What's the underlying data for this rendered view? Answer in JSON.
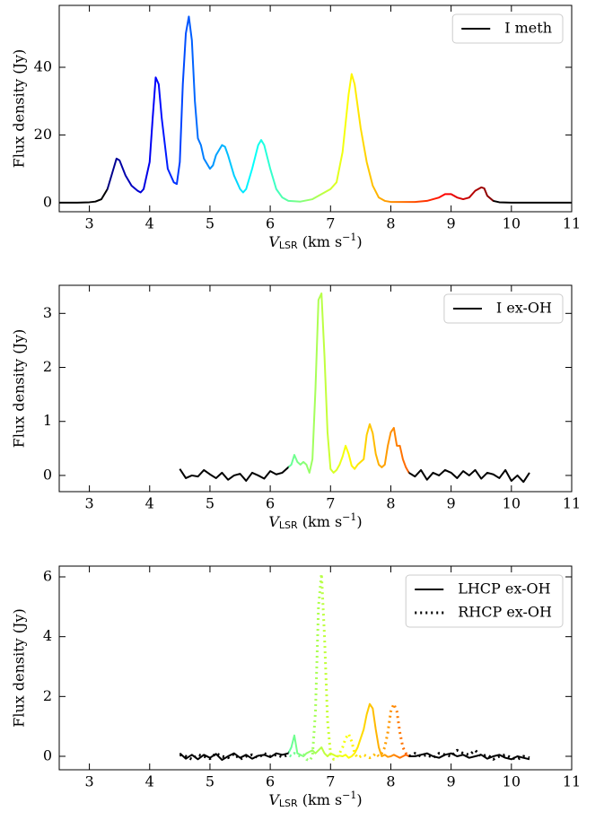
{
  "chart_data": [
    {
      "type": "line",
      "ylabel": "Flux density (Jy)",
      "xlabel_parts": [
        "V",
        "LSR",
        " (km s",
        "−1",
        ")"
      ],
      "xlim": [
        2.5,
        11
      ],
      "xticks": [
        3,
        4,
        5,
        6,
        7,
        8,
        9,
        10,
        11
      ],
      "ylim": [
        -2.7,
        58.3
      ],
      "yticks": [
        0,
        20,
        40
      ],
      "colormap": "jet",
      "colormap_xlim": [
        3.3,
        9.7
      ],
      "legend": "upper right",
      "series": [
        {
          "name": "I meth",
          "color": "#000000",
          "dash": "solid",
          "colored_x": [
            3.3,
            9.7
          ],
          "x": [
            2.5,
            2.8,
            3.0,
            3.1,
            3.2,
            3.3,
            3.4,
            3.45,
            3.5,
            3.6,
            3.7,
            3.8,
            3.85,
            3.9,
            4.0,
            4.05,
            4.1,
            4.15,
            4.2,
            4.3,
            4.4,
            4.45,
            4.5,
            4.55,
            4.6,
            4.65,
            4.7,
            4.75,
            4.8,
            4.85,
            4.9,
            5.0,
            5.05,
            5.1,
            5.2,
            5.25,
            5.3,
            5.4,
            5.5,
            5.55,
            5.6,
            5.7,
            5.8,
            5.85,
            5.9,
            6.0,
            6.1,
            6.2,
            6.3,
            6.5,
            6.7,
            6.8,
            6.9,
            7.0,
            7.1,
            7.2,
            7.3,
            7.35,
            7.4,
            7.5,
            7.6,
            7.7,
            7.8,
            7.9,
            8.0,
            8.4,
            8.6,
            8.8,
            8.9,
            9.0,
            9.1,
            9.2,
            9.3,
            9.4,
            9.5,
            9.55,
            9.6,
            9.7,
            9.8,
            10.0,
            10.5,
            11.0
          ],
          "values": [
            0,
            0,
            0.1,
            0.3,
            1,
            4,
            10,
            13,
            12.5,
            8,
            5,
            3.5,
            3,
            4,
            12,
            25,
            37,
            35,
            25,
            10,
            6,
            5.5,
            12,
            35,
            50,
            55,
            48,
            30,
            19,
            17,
            13,
            10,
            11,
            14,
            17,
            16.5,
            14,
            8,
            4,
            3,
            4,
            10,
            17,
            18.5,
            17,
            10,
            4,
            1.5,
            0.5,
            0.3,
            1,
            2,
            3,
            4,
            6,
            15,
            32,
            38,
            35,
            22,
            12,
            5,
            1.5,
            0.5,
            0.2,
            0.2,
            0.5,
            1.5,
            2.5,
            2.5,
            1.5,
            1,
            1.5,
            3.5,
            4.5,
            4.2,
            2,
            0.5,
            0.1,
            0,
            0,
            0
          ]
        }
      ]
    },
    {
      "type": "line",
      "ylabel": "Flux density (Jy)",
      "xlabel_parts": [
        "V",
        "LSR",
        " (km s",
        "−1",
        ")"
      ],
      "xlim": [
        2.5,
        11
      ],
      "xticks": [
        3,
        4,
        5,
        6,
        7,
        8,
        9,
        10,
        11
      ],
      "ylim": [
        -0.3,
        3.52
      ],
      "yticks": [
        0,
        1,
        2,
        3
      ],
      "colormap": "jet",
      "colormap_xlim": [
        3.3,
        9.7
      ],
      "legend": "upper right",
      "series": [
        {
          "name": "I ex-OH",
          "color": "#000000",
          "dash": "solid",
          "colored_x": [
            6.3,
            8.3
          ],
          "x": [
            4.5,
            4.6,
            4.7,
            4.8,
            4.9,
            5.0,
            5.1,
            5.2,
            5.3,
            5.4,
            5.5,
            5.6,
            5.7,
            5.8,
            5.9,
            6.0,
            6.1,
            6.2,
            6.3,
            6.35,
            6.4,
            6.45,
            6.5,
            6.55,
            6.6,
            6.65,
            6.7,
            6.75,
            6.8,
            6.85,
            6.9,
            6.95,
            7.0,
            7.05,
            7.1,
            7.15,
            7.2,
            7.25,
            7.3,
            7.35,
            7.4,
            7.45,
            7.5,
            7.55,
            7.6,
            7.65,
            7.7,
            7.75,
            7.8,
            7.85,
            7.9,
            7.95,
            8.0,
            8.05,
            8.1,
            8.15,
            8.2,
            8.25,
            8.3,
            8.4,
            8.5,
            8.6,
            8.7,
            8.8,
            8.9,
            9.0,
            9.1,
            9.2,
            9.3,
            9.4,
            9.5,
            9.6,
            9.7,
            9.8,
            9.9,
            10.0,
            10.1,
            10.2,
            10.3
          ],
          "values": [
            0.12,
            -0.05,
            0.0,
            -0.02,
            0.1,
            0.02,
            -0.05,
            0.05,
            -0.08,
            0.0,
            0.03,
            -0.1,
            0.05,
            0.0,
            -0.06,
            0.08,
            0.02,
            0.05,
            0.15,
            0.2,
            0.38,
            0.25,
            0.2,
            0.25,
            0.2,
            0.05,
            0.3,
            1.6,
            3.25,
            3.37,
            2.2,
            0.8,
            0.12,
            0.05,
            0.1,
            0.2,
            0.35,
            0.55,
            0.4,
            0.18,
            0.12,
            0.2,
            0.25,
            0.3,
            0.75,
            0.95,
            0.78,
            0.4,
            0.2,
            0.15,
            0.2,
            0.55,
            0.8,
            0.88,
            0.55,
            0.55,
            0.3,
            0.15,
            0.05,
            -0.02,
            0.1,
            -0.08,
            0.05,
            0.0,
            0.1,
            0.05,
            -0.05,
            0.08,
            0.0,
            0.1,
            -0.06,
            0.05,
            0.02,
            -0.05,
            0.1,
            -0.1,
            0.0,
            -0.12,
            0.05
          ]
        }
      ]
    },
    {
      "type": "line",
      "ylabel": "Flux density (Jy)",
      "xlabel_parts": [
        "V",
        "LSR",
        " (km s",
        "−1",
        ")"
      ],
      "xlim": [
        2.5,
        11
      ],
      "xticks": [
        3,
        4,
        5,
        6,
        7,
        8,
        9,
        10,
        11
      ],
      "ylim": [
        -0.45,
        6.36
      ],
      "yticks": [
        0,
        2,
        4,
        6
      ],
      "colormap": "jet",
      "colormap_xlim": [
        3.3,
        9.7
      ],
      "legend": "upper right",
      "x": [
        4.5,
        4.6,
        4.7,
        4.8,
        4.9,
        5.0,
        5.1,
        5.2,
        5.3,
        5.4,
        5.5,
        5.6,
        5.7,
        5.8,
        5.9,
        6.0,
        6.1,
        6.2,
        6.3,
        6.35,
        6.4,
        6.45,
        6.5,
        6.55,
        6.6,
        6.65,
        6.7,
        6.75,
        6.8,
        6.85,
        6.9,
        6.95,
        7.0,
        7.05,
        7.1,
        7.15,
        7.2,
        7.25,
        7.3,
        7.35,
        7.4,
        7.45,
        7.5,
        7.55,
        7.6,
        7.65,
        7.7,
        7.75,
        7.8,
        7.85,
        7.9,
        7.95,
        8.0,
        8.05,
        8.1,
        8.15,
        8.2,
        8.25,
        8.3,
        8.4,
        8.5,
        8.6,
        8.7,
        8.8,
        8.9,
        9.0,
        9.1,
        9.2,
        9.3,
        9.4,
        9.5,
        9.6,
        9.7,
        9.8,
        9.9,
        10.0,
        10.1,
        10.2,
        10.3
      ],
      "series": [
        {
          "name": "LHCP ex-OH",
          "color": "#000000",
          "dash": "solid",
          "colored_x": [
            6.3,
            8.3
          ],
          "values": [
            0.1,
            -0.08,
            0.05,
            -0.1,
            0.05,
            -0.05,
            0.08,
            -0.12,
            0.0,
            0.1,
            -0.05,
            0.05,
            -0.08,
            0.02,
            0.05,
            -0.03,
            0.1,
            0.05,
            0.1,
            0.3,
            0.7,
            0.1,
            0.05,
            0.0,
            0.1,
            0.15,
            0.2,
            0.1,
            0.2,
            0.3,
            0.1,
            0.0,
            0.1,
            0.05,
            0.0,
            0.02,
            0.0,
            0.05,
            -0.05,
            0.0,
            0.1,
            0.3,
            0.6,
            0.9,
            1.4,
            1.75,
            1.6,
            0.9,
            0.3,
            0.0,
            0.05,
            -0.02,
            0.0,
            0.05,
            0.0,
            -0.05,
            0.0,
            0.05,
            0.0,
            0.0,
            0.05,
            0.1,
            0.0,
            -0.05,
            0.05,
            0.1,
            0.0,
            0.05,
            -0.05,
            0.0,
            0.05,
            -0.08,
            0.0,
            0.05,
            -0.05,
            -0.1,
            0.0,
            -0.05,
            -0.1
          ]
        },
        {
          "name": "RHCP ex-OH",
          "color": "#000000",
          "dash": "dotted",
          "colored_x": [
            6.3,
            8.3
          ],
          "values": [
            0.05,
            0.0,
            -0.1,
            0.05,
            0.0,
            -0.08,
            0.1,
            0.0,
            -0.05,
            0.08,
            -0.1,
            0.0,
            0.05,
            -0.05,
            0.1,
            0.0,
            0.05,
            -0.02,
            0.05,
            0.0,
            0.1,
            0.05,
            0.0,
            0.05,
            -0.1,
            -0.15,
            0.0,
            1.5,
            5.0,
            6.1,
            4.0,
            1.2,
            0.1,
            -0.1,
            -0.05,
            0.1,
            0.3,
            0.6,
            0.75,
            0.5,
            0.1,
            -0.05,
            0.0,
            0.05,
            0.0,
            -0.05,
            0.0,
            0.1,
            0.0,
            0.1,
            0.3,
            0.8,
            1.5,
            1.75,
            1.5,
            0.8,
            0.3,
            0.1,
            0.0,
            0.1,
            0.0,
            0.05,
            -0.05,
            0.1,
            0.05,
            0.0,
            0.2,
            0.1,
            0.05,
            0.2,
            0.0,
            0.05,
            -0.1,
            0.0,
            0.05,
            -0.05,
            -0.1,
            0.0,
            -0.05
          ]
        }
      ]
    }
  ]
}
